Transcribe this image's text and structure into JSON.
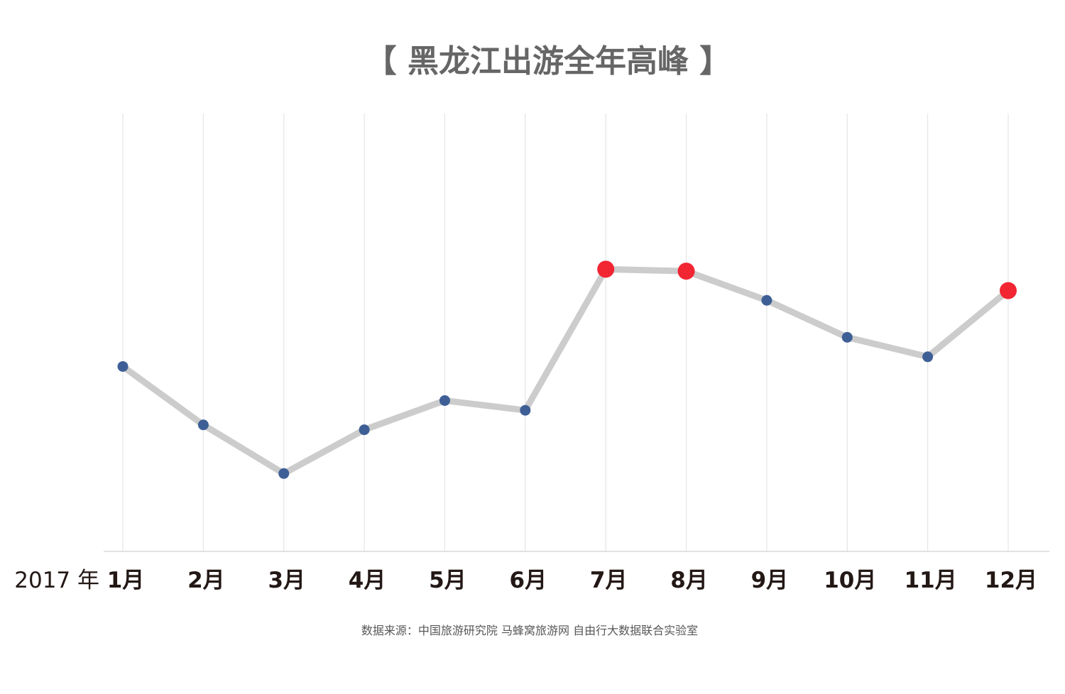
{
  "chart_data": {
    "type": "line",
    "title": "【 黑龙江出游全年高峰 】",
    "year_label": "2017 年",
    "categories": [
      "1月",
      "2月",
      "3月",
      "4月",
      "5月",
      "6月",
      "7月",
      "8月",
      "9月",
      "10月",
      "11月",
      "12月"
    ],
    "series": [
      {
        "values": [
          37,
          31,
          26,
          30.5,
          33.5,
          32.5,
          47,
          46.8,
          43.8,
          40,
          38,
          44.8
        ],
        "highlight": [
          false,
          false,
          false,
          false,
          false,
          false,
          true,
          true,
          false,
          false,
          false,
          true
        ]
      }
    ],
    "ylim": [
      18,
      63
    ],
    "grid": "vertical",
    "line_color": "#cccccc",
    "marker_color": "#3e5f96",
    "highlight_color": "#f22533",
    "source": "数据来源：中国旅游研究院 马蜂窝旅游网 自由行大数据联合实验室"
  }
}
